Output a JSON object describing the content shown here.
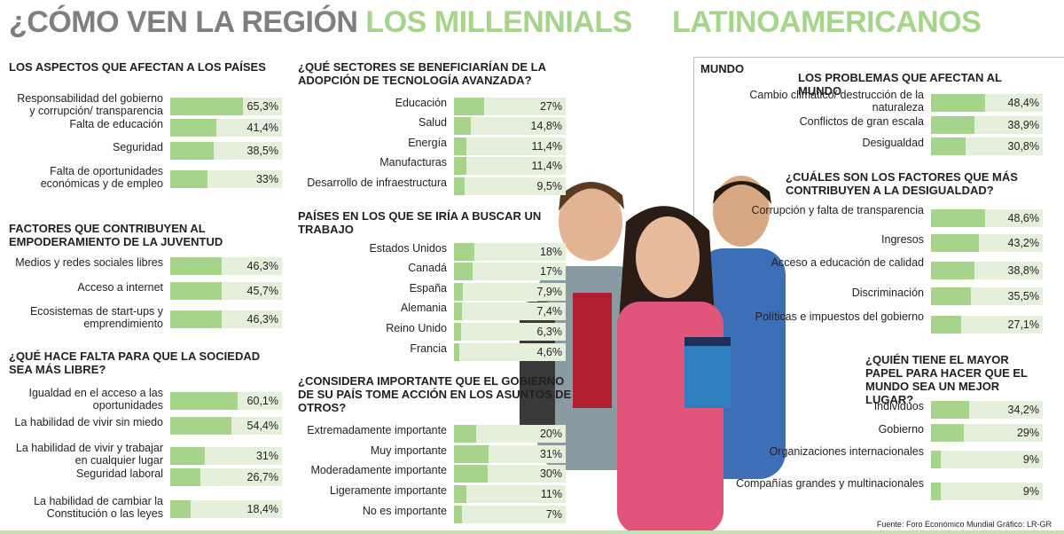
{
  "title_part1": "¿CÓMO VEN LA REGIÓN ",
  "title_part2": "LOS MILLENNIALS",
  "title_part3": "LATINOAMERICANOS",
  "mundo_label": "MUNDO",
  "source": "Fuente: Foro Económico Mundial      Gráfico: LR-GR",
  "colors": {
    "bar": "#a6d48a",
    "track": "#e5f0dc",
    "title_gray": "#7f7f7f",
    "title_green": "#a6d48a"
  },
  "chart_data": [
    {
      "type": "bar",
      "title": "LOS ASPECTOS QUE AFECTAN A LOS PAÍSES",
      "categories": [
        "Responsabilidad del gobierno y corrupción/ transparencia",
        "Falta de educación",
        "Seguridad",
        "Falta de oportunidades económicas y de empleo"
      ],
      "values": [
        65.3,
        41.4,
        38.5,
        33
      ],
      "labels": [
        "65,3%",
        "41,4%",
        "38,5%",
        "33%"
      ]
    },
    {
      "type": "bar",
      "title": "FACTORES QUE CONTRIBUYEN AL EMPODERAMIENTO DE LA JUVENTUD",
      "categories": [
        "Medios y redes sociales libres",
        "Acceso a internet",
        "Ecosistemas de start-ups y emprendimiento"
      ],
      "values": [
        46.3,
        45.7,
        46.3
      ],
      "labels": [
        "46,3%",
        "45,7%",
        "46,3%"
      ]
    },
    {
      "type": "bar",
      "title": "¿QUÉ HACE FALTA PARA QUE LA SOCIEDAD SEA MÁS LIBRE?",
      "categories": [
        "Igualdad en el acceso a las oportunidades",
        "La habilidad de vivir sin miedo",
        "La habilidad de vivir y trabajar en cualquier lugar",
        "Seguridad laboral",
        "La habilidad de cambiar la Constitución o las leyes"
      ],
      "values": [
        60.1,
        54.4,
        31,
        26.7,
        18.4
      ],
      "labels": [
        "60,1%",
        "54,4%",
        "31%",
        "26,7%",
        "18,4%"
      ]
    },
    {
      "type": "bar",
      "title": "¿QUÉ SECTORES SE BENEFICIARÍAN DE LA ADOPCIÓN DE TECNOLOGÍA AVANZADA?",
      "categories": [
        "Educación",
        "Salud",
        "Energía",
        "Manufacturas",
        "Desarrollo de infraestructura"
      ],
      "values": [
        27,
        14.8,
        11.4,
        11.4,
        9.5
      ],
      "labels": [
        "27%",
        "14,8%",
        "11,4%",
        "11,4%",
        "9,5%"
      ]
    },
    {
      "type": "bar",
      "title": "PAÍSES EN LOS QUE SE IRÍA A BUSCAR UN TRABAJO",
      "categories": [
        "Estados Unidos",
        "Canadá",
        "España",
        "Alemania",
        "Reino Unido",
        "Francia"
      ],
      "values": [
        18,
        17,
        7.9,
        7.4,
        6.3,
        4.6
      ],
      "labels": [
        "18%",
        "17%",
        "7,9%",
        "7,4%",
        "6,3%",
        "4,6%"
      ]
    },
    {
      "type": "bar",
      "title": "¿CONSIDERA IMPORTANTE QUE EL GOBIERNO DE SU PAÍS TOME ACCIÓN EN LOS ASUNTOS DE OTROS?",
      "categories": [
        "Extremadamente importante",
        "Muy importante",
        "Moderadamente importante",
        "Ligeramente importante",
        "No es importante"
      ],
      "values": [
        20,
        31,
        30,
        11,
        7
      ],
      "labels": [
        "20%",
        "31%",
        "30%",
        "11%",
        "7%"
      ]
    },
    {
      "type": "bar",
      "title": "LOS PROBLEMAS QUE AFECTAN AL MUNDO",
      "categories": [
        "Cambio climático/ destrucción de la naturaleza",
        "Conflictos de gran escala",
        "Desigualdad"
      ],
      "values": [
        48.4,
        38.9,
        30.8
      ],
      "labels": [
        "48,4%",
        "38,9%",
        "30,8%"
      ]
    },
    {
      "type": "bar",
      "title": "¿CUÁLES SON LOS FACTORES QUE MÁS CONTRIBUYEN A LA DESIGUALDAD?",
      "categories": [
        "Corrupción y falta de transparencia",
        "Ingresos",
        "Acceso a educación de calidad",
        "Discriminación",
        "Políticas e impuestos del gobierno"
      ],
      "values": [
        48.6,
        43.2,
        38.8,
        35.5,
        27.1
      ],
      "labels": [
        "48,6%",
        "43,2%",
        "38,8%",
        "35,5%",
        "27,1%"
      ]
    },
    {
      "type": "bar",
      "title": "¿QUIÉN TIENE EL MAYOR PAPEL PARA HACER QUE EL MUNDO SEA UN MEJOR LUGAR?",
      "categories": [
        "Individuos",
        "Gobierno",
        "Organizaciones internacionales",
        "Compañías grandes y multinacionales"
      ],
      "values": [
        34.2,
        29,
        9,
        9
      ],
      "labels": [
        "34,2%",
        "29%",
        "9%",
        "9%"
      ]
    }
  ]
}
